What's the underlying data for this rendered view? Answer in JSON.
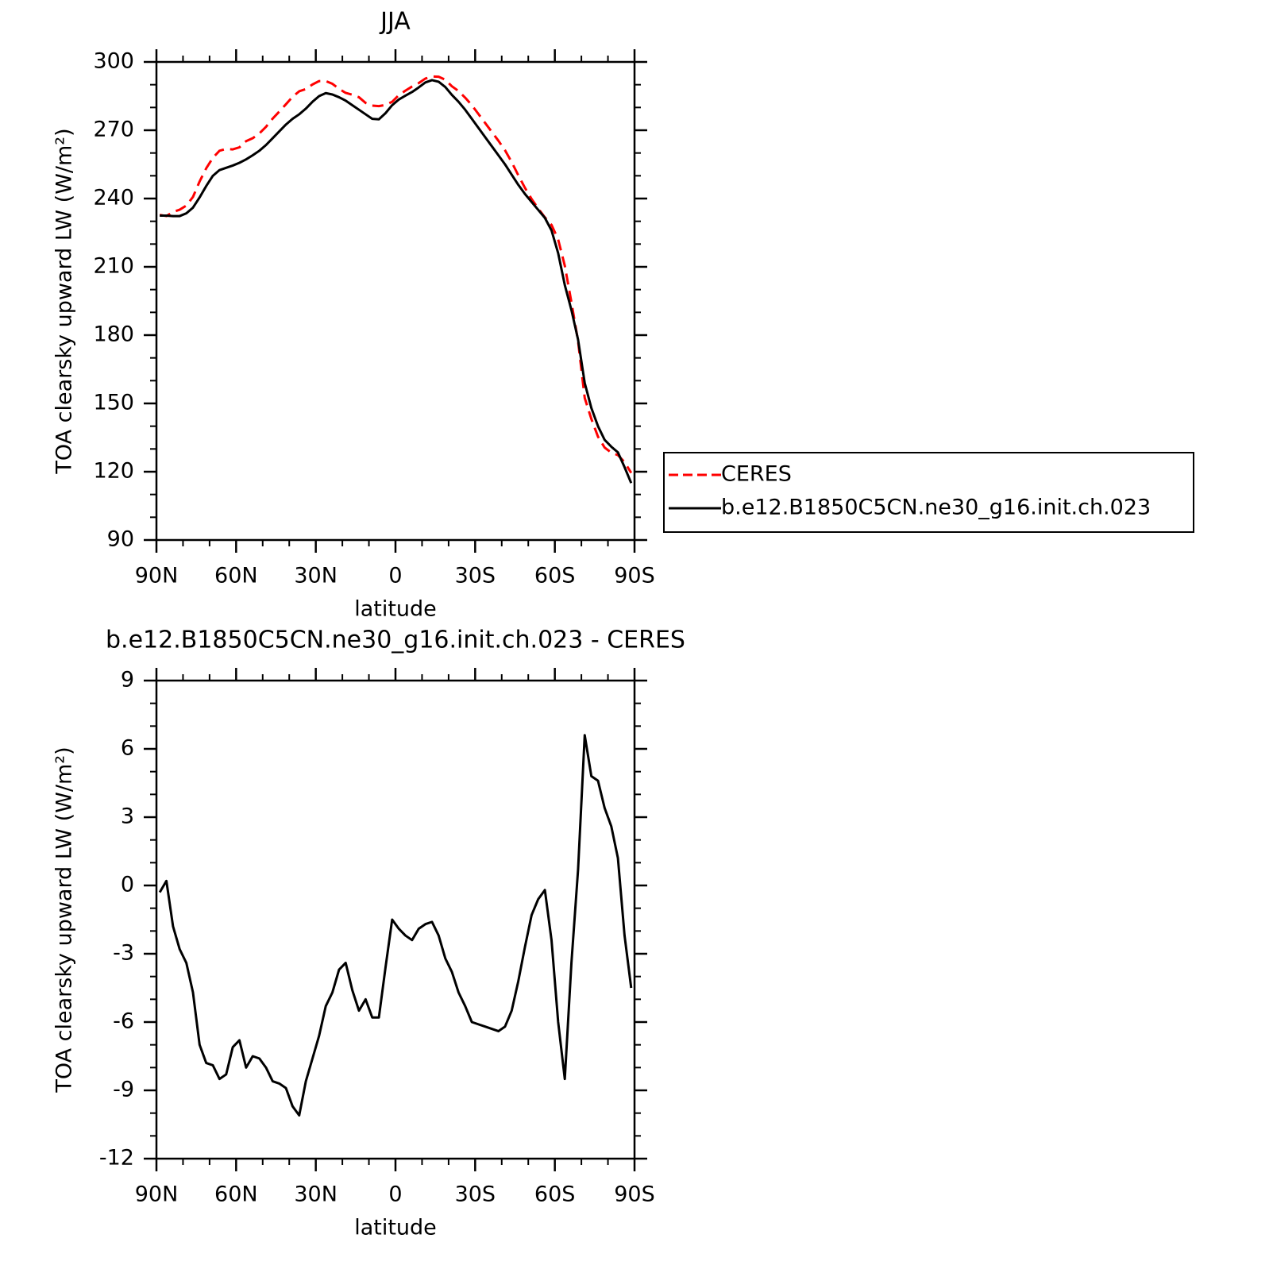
{
  "chart_data": [
    {
      "type": "line",
      "title": "JJA",
      "ylabel": "TOA clearsky upward LW (W/m²)",
      "xlabel": "latitude",
      "x": [
        88.75,
        86.25,
        83.75,
        81.25,
        78.75,
        76.25,
        73.75,
        71.25,
        68.75,
        66.25,
        63.75,
        61.25,
        58.75,
        56.25,
        53.75,
        51.25,
        48.75,
        46.25,
        43.75,
        41.25,
        38.75,
        36.25,
        33.75,
        31.25,
        28.75,
        26.25,
        23.75,
        21.25,
        18.75,
        16.25,
        13.75,
        11.25,
        8.75,
        6.25,
        3.75,
        1.25,
        -1.25,
        -3.75,
        -6.25,
        -8.75,
        -11.25,
        -13.75,
        -16.25,
        -18.75,
        -21.25,
        -23.75,
        -26.25,
        -28.75,
        -31.25,
        -33.75,
        -36.25,
        -38.75,
        -41.25,
        -43.75,
        -46.25,
        -48.75,
        -51.25,
        -53.75,
        -56.25,
        -58.75,
        -61.25,
        -63.75,
        -66.25,
        -68.75,
        -71.25,
        -73.75,
        -76.25,
        -78.75,
        -81.25,
        -83.75,
        -86.25,
        -88.75
      ],
      "series": [
        {
          "name": "CERES",
          "color": "#ff0000",
          "dashed": true,
          "values": [
            232.8,
            232.3,
            234.1,
            235.1,
            236.9,
            240.7,
            247.5,
            253.3,
            257.9,
            261.0,
            261.8,
            261.6,
            262.5,
            265.2,
            266.5,
            268.6,
            271.5,
            275.1,
            278.2,
            281.4,
            284.7,
            287.1,
            288.1,
            290.1,
            291.6,
            291.6,
            290.4,
            288.2,
            286.4,
            285.6,
            284.5,
            282.0,
            280.8,
            280.6,
            281.1,
            282.5,
            285.4,
            287.4,
            289.2,
            290.7,
            292.7,
            293.6,
            293.5,
            292.2,
            289.3,
            287.2,
            284.3,
            281.0,
            277.1,
            273.2,
            269.3,
            265.4,
            261.2,
            256.0,
            250.2,
            244.7,
            239.8,
            235.6,
            231.7,
            228.4,
            222.0,
            210.5,
            194.4,
            177.3,
            152.4,
            143.2,
            135.4,
            130.6,
            128.4,
            127.3,
            124.2,
            119.5
          ]
        },
        {
          "name": "b.e12.B1850C5CN.ne30_g16.init.ch.023",
          "color": "#000000",
          "dashed": false,
          "values": [
            232.5,
            232.5,
            232.3,
            232.3,
            233.5,
            236,
            240.5,
            245.5,
            250,
            252.5,
            253.5,
            254.5,
            255.7,
            257.2,
            259,
            261,
            263.5,
            266.5,
            269.5,
            272.5,
            275,
            277,
            279.5,
            282.5,
            285,
            286.3,
            285.7,
            284.5,
            283,
            281,
            279,
            277,
            275,
            274.8,
            277.5,
            281,
            283.5,
            285.2,
            286.8,
            288.8,
            291,
            292,
            291.3,
            289,
            285.5,
            282.5,
            279,
            275,
            271,
            267,
            263,
            259,
            255,
            250.5,
            246,
            242,
            238.5,
            235,
            231.5,
            226,
            216,
            202,
            191,
            178,
            159,
            148,
            140,
            134,
            131,
            128.5,
            122,
            115
          ]
        }
      ],
      "xlim": [
        90,
        -90
      ],
      "xticks": [
        {
          "value": 90,
          "label": "90N"
        },
        {
          "value": 60,
          "label": "60N"
        },
        {
          "value": 30,
          "label": "30N"
        },
        0,
        {
          "value": -30,
          "label": "30S"
        },
        {
          "value": -60,
          "label": "60S"
        },
        {
          "value": -90,
          "label": "90S"
        }
      ],
      "xminorticks": [
        80,
        70,
        50,
        40,
        20,
        10,
        -10,
        -20,
        -40,
        -50,
        -70,
        -80
      ],
      "ylim": [
        90,
        300
      ],
      "yticks": [
        90,
        120,
        150,
        180,
        210,
        240,
        270,
        300
      ],
      "yminorticks": [
        100,
        110,
        130,
        140,
        160,
        170,
        190,
        200,
        220,
        230,
        250,
        260,
        280,
        290
      ],
      "legend": "right"
    },
    {
      "type": "line",
      "title": "b.e12.B1850C5CN.ne30_g16.init.ch.023 - CERES",
      "ylabel": "TOA clearsky upward LW (W/m²)",
      "xlabel": "latitude",
      "x": [
        88.75,
        86.25,
        83.75,
        81.25,
        78.75,
        76.25,
        73.75,
        71.25,
        68.75,
        66.25,
        63.75,
        61.25,
        58.75,
        56.25,
        53.75,
        51.25,
        48.75,
        46.25,
        43.75,
        41.25,
        38.75,
        36.25,
        33.75,
        31.25,
        28.75,
        26.25,
        23.75,
        21.25,
        18.75,
        16.25,
        13.75,
        11.25,
        8.75,
        6.25,
        3.75,
        1.25,
        -1.25,
        -3.75,
        -6.25,
        -8.75,
        -11.25,
        -13.75,
        -16.25,
        -18.75,
        -21.25,
        -23.75,
        -26.25,
        -28.75,
        -31.25,
        -33.75,
        -36.25,
        -38.75,
        -41.25,
        -43.75,
        -46.25,
        -48.75,
        -51.25,
        -53.75,
        -56.25,
        -58.75,
        -61.25,
        -63.75,
        -66.25,
        -68.75,
        -71.25,
        -73.75,
        -76.25,
        -78.75,
        -81.25,
        -83.75,
        -86.25,
        -88.75
      ],
      "series": [
        {
          "color": "#000000",
          "dashed": false,
          "values": [
            -0.3,
            0.2,
            -1.8,
            -2.8,
            -3.4,
            -4.7,
            -7.0,
            -7.8,
            -7.9,
            -8.5,
            -8.3,
            -7.1,
            -6.8,
            -8.0,
            -7.5,
            -7.6,
            -8.0,
            -8.6,
            -8.7,
            -8.9,
            -9.7,
            -10.1,
            -8.6,
            -7.6,
            -6.6,
            -5.3,
            -4.7,
            -3.7,
            -3.4,
            -4.6,
            -5.5,
            -5.0,
            -5.8,
            -5.8,
            -3.6,
            -1.5,
            -1.9,
            -2.2,
            -2.4,
            -1.9,
            -1.7,
            -1.6,
            -2.2,
            -3.2,
            -3.8,
            -4.7,
            -5.3,
            -6.0,
            -6.1,
            -6.2,
            -6.3,
            -6.4,
            -6.2,
            -5.5,
            -4.2,
            -2.7,
            -1.3,
            -0.6,
            -0.2,
            -2.4,
            -6.0,
            -8.5,
            -3.4,
            0.7,
            6.6,
            4.8,
            4.6,
            3.4,
            2.6,
            1.2,
            -2.2,
            -4.5
          ]
        }
      ],
      "xlim": [
        90,
        -90
      ],
      "xticks": [
        {
          "value": 90,
          "label": "90N"
        },
        {
          "value": 60,
          "label": "60N"
        },
        {
          "value": 30,
          "label": "30N"
        },
        0,
        {
          "value": -30,
          "label": "30S"
        },
        {
          "value": -60,
          "label": "60S"
        },
        {
          "value": -90,
          "label": "90S"
        }
      ],
      "xminorticks": [
        80,
        70,
        50,
        40,
        20,
        10,
        -10,
        -20,
        -40,
        -50,
        -70,
        -80
      ],
      "ylim": [
        -12,
        9
      ],
      "yticks": [
        -12,
        -9,
        -6,
        -3,
        0,
        3,
        6,
        9
      ],
      "yminorticks": [
        -11,
        -10,
        -8,
        -7,
        -5,
        -4,
        -2,
        -1,
        1,
        2,
        4,
        5,
        7,
        8
      ]
    }
  ]
}
